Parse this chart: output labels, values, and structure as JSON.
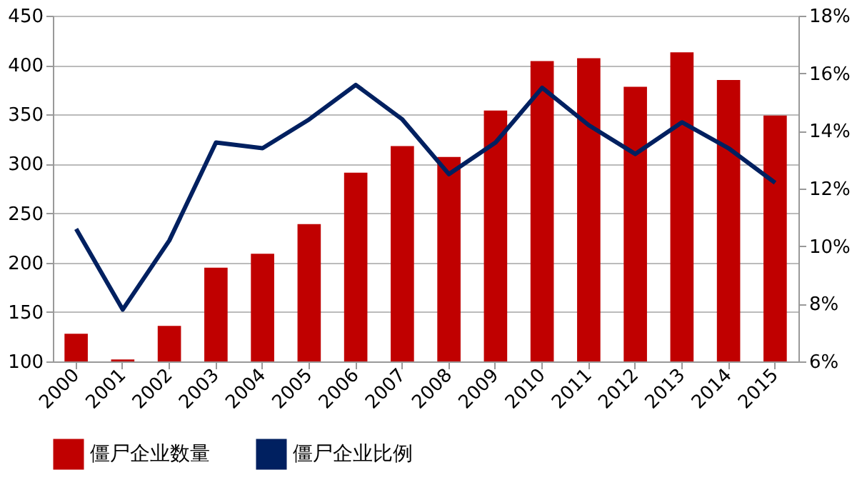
{
  "chart_data": {
    "type": "bar",
    "categories": [
      "2000",
      "2001",
      "2002",
      "2003",
      "2004",
      "2005",
      "2006",
      "2007",
      "2008",
      "2009",
      "2010",
      "2011",
      "2012",
      "2013",
      "2014",
      "2015"
    ],
    "series": [
      {
        "name": "僵尸企业数量",
        "color": "#c00000",
        "values": [
          128,
          102,
          136,
          195,
          209,
          239,
          291,
          318,
          307,
          354,
          404,
          407,
          378,
          413,
          385,
          349
        ]
      },
      {
        "name": "僵尸企业比例",
        "type": "line",
        "axis": "y2",
        "color": "#002060",
        "values": [
          10.6,
          7.8,
          10.2,
          13.6,
          13.4,
          14.4,
          15.6,
          14.4,
          12.5,
          13.6,
          15.5,
          14.2,
          13.2,
          14.3,
          13.4,
          12.2
        ]
      }
    ],
    "ylim": [
      100,
      450
    ],
    "yticks": [
      100,
      150,
      200,
      250,
      300,
      350,
      400,
      450
    ],
    "y2lim": [
      6,
      18
    ],
    "y2ticks": [
      {
        "value": 6,
        "label": "6%"
      },
      {
        "value": 8,
        "label": "8%"
      },
      {
        "value": 10,
        "label": "10%"
      },
      {
        "value": 12,
        "label": "12%"
      },
      {
        "value": 14,
        "label": "14%"
      },
      {
        "value": 16,
        "label": "16%"
      },
      {
        "value": 18,
        "label": "18%"
      }
    ],
    "grid": "y",
    "legend": "bottom",
    "marker": "none",
    "line_style": "solid"
  }
}
